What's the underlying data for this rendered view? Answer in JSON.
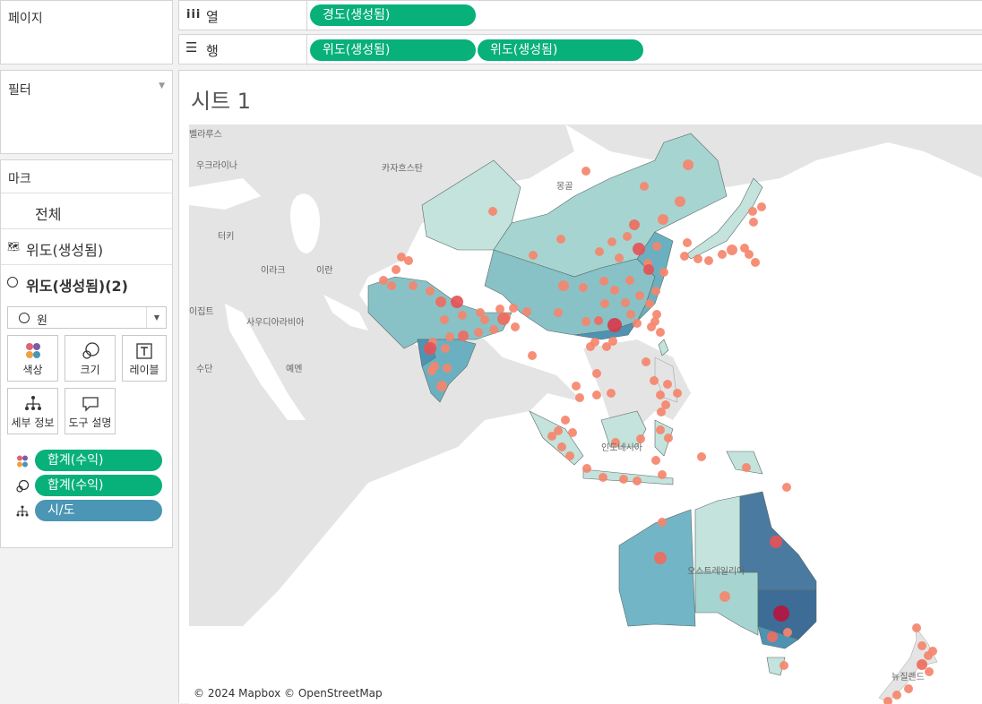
{
  "shelves": {
    "pages_label": "페이지",
    "columns": {
      "icon": "columns-icon",
      "label": "열",
      "pills": [
        "경도(생성됨)"
      ]
    },
    "rows": {
      "icon": "rows-icon",
      "label": "행",
      "pills": [
        "위도(생성됨)",
        "위도(생성됨)"
      ]
    }
  },
  "filters": {
    "label": "필터"
  },
  "marks": {
    "label": "마크",
    "all": "전체",
    "layer1": "위도(생성됨)",
    "layer2": "위도(생성됨)(2)",
    "mark_type": "원",
    "buttons": {
      "color": "색상",
      "size": "크기",
      "label": "레이블",
      "detail": "세부 정보",
      "tooltip": "도구 설명"
    },
    "fields": [
      {
        "icon": "color-icon",
        "label": "합계(수익)",
        "color": "#08b07a"
      },
      {
        "icon": "size-icon",
        "label": "합계(수익)",
        "color": "#08b07a"
      },
      {
        "icon": "detail-icon",
        "label": "시/도",
        "color": "#4a96b4"
      }
    ]
  },
  "sheet": {
    "title": "시트 1",
    "attribution": "© 2024 Mapbox © OpenStreetMap",
    "map_labels": [
      {
        "name": "벨라루스",
        "text": "벨라루스"
      },
      {
        "name": "우크라이나",
        "text": "우크라이나"
      },
      {
        "name": "카자흐스탄",
        "text": "카자흐스탄"
      },
      {
        "name": "몽골",
        "text": "몽골"
      },
      {
        "name": "터키",
        "text": "터키"
      },
      {
        "name": "이라크",
        "text": "이라크"
      },
      {
        "name": "이란",
        "text": "이란"
      },
      {
        "name": "이집트",
        "text": "이집트"
      },
      {
        "name": "사우디아라비아",
        "text": "사우디아라비아"
      },
      {
        "name": "수단",
        "text": "수단"
      },
      {
        "name": "예멘",
        "text": "예멘"
      },
      {
        "name": "인도네시아",
        "text": "인도네시아"
      },
      {
        "name": "오스트레일리아",
        "text": "오스트레일리아"
      },
      {
        "name": "뉴질랜드",
        "text": "뉴질랜드"
      }
    ]
  },
  "colors": {
    "green": "#08b07a",
    "blue": "#4a96b4",
    "mark_light": "#f5866c",
    "mark_dark": "#b5163f",
    "region_light": "#c3e3dc",
    "region_dark": "#3d6d96"
  }
}
